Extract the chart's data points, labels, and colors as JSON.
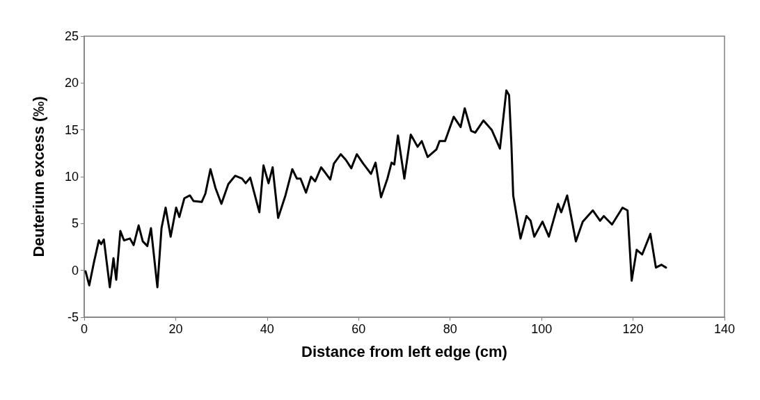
{
  "chart_data": {
    "type": "line",
    "xlabel": "Distance from left edge (cm)",
    "ylabel": "Deuterium excess (‰)",
    "xlim": [
      0,
      140
    ],
    "xticks": [
      0,
      20,
      40,
      60,
      80,
      100,
      120,
      140
    ],
    "ylim": [
      -5,
      25
    ],
    "yticks": [
      -5,
      0,
      5,
      10,
      15,
      20,
      25
    ],
    "grid": false,
    "line_style": "solid",
    "series": [
      {
        "color": "#000000",
        "x": [
          0.3,
          1.1,
          2.1,
          3.2,
          3.7,
          4.3,
          5.6,
          6.4,
          7.0,
          7.9,
          8.7,
          10.0,
          10.8,
          11.9,
          12.8,
          13.8,
          14.6,
          16.0,
          16.9,
          17.8,
          18.9,
          20.1,
          20.8,
          21.9,
          23.1,
          23.9,
          25.7,
          26.5,
          27.6,
          28.7,
          30.0,
          31.5,
          33.0,
          34.5,
          35.3,
          36.3,
          38.3,
          39.2,
          40.3,
          41.2,
          42.4,
          44.0,
          45.5,
          46.5,
          47.3,
          48.5,
          49.6,
          50.5,
          51.8,
          52.6,
          53.8,
          54.6,
          56.1,
          57.2,
          58.4,
          59.6,
          61.0,
          62.7,
          63.7,
          64.9,
          66.3,
          67.2,
          67.8,
          68.6,
          70.0,
          71.4,
          72.9,
          73.8,
          75.1,
          77.0,
          77.7,
          78.9,
          80.8,
          82.3,
          83.2,
          84.6,
          85.5,
          87.3,
          89.1,
          90.9,
          92.3,
          92.9,
          93.4,
          93.8,
          95.4,
          96.7,
          97.6,
          98.4,
          100.2,
          101.6,
          103.6,
          104.3,
          105.6,
          107.5,
          109.0,
          111.2,
          112.8,
          113.6,
          115.4,
          117.7,
          118.8,
          119.7,
          120.8,
          122.0,
          123.8,
          125.0,
          126.2,
          127.2
        ],
        "values": [
          -0.1,
          -1.6,
          0.8,
          3.2,
          2.8,
          3.3,
          -1.8,
          1.3,
          -1.0,
          4.2,
          3.2,
          3.4,
          2.7,
          4.8,
          3.1,
          2.6,
          4.5,
          -1.8,
          4.5,
          6.7,
          3.6,
          6.7,
          5.7,
          7.7,
          8.0,
          7.4,
          7.3,
          8.2,
          10.8,
          8.8,
          7.1,
          9.2,
          10.1,
          9.8,
          9.3,
          9.9,
          6.2,
          11.2,
          9.3,
          11.0,
          5.6,
          8.0,
          10.8,
          9.8,
          9.8,
          8.3,
          10.0,
          9.5,
          11.0,
          10.5,
          9.7,
          11.4,
          12.4,
          11.8,
          10.9,
          12.4,
          11.4,
          10.3,
          11.5,
          7.8,
          9.8,
          11.5,
          11.3,
          14.4,
          9.8,
          14.5,
          13.2,
          13.8,
          12.1,
          12.9,
          13.8,
          13.8,
          16.4,
          15.3,
          17.3,
          14.9,
          14.7,
          16.0,
          15.0,
          13.0,
          19.2,
          18.7,
          13.5,
          8.0,
          3.4,
          5.8,
          5.3,
          3.6,
          5.2,
          3.6,
          7.1,
          6.2,
          8.0,
          3.1,
          5.2,
          6.4,
          5.3,
          5.8,
          4.9,
          6.7,
          6.4,
          -1.1,
          2.2,
          1.7,
          3.9,
          0.3,
          0.6,
          0.3
        ]
      }
    ]
  }
}
